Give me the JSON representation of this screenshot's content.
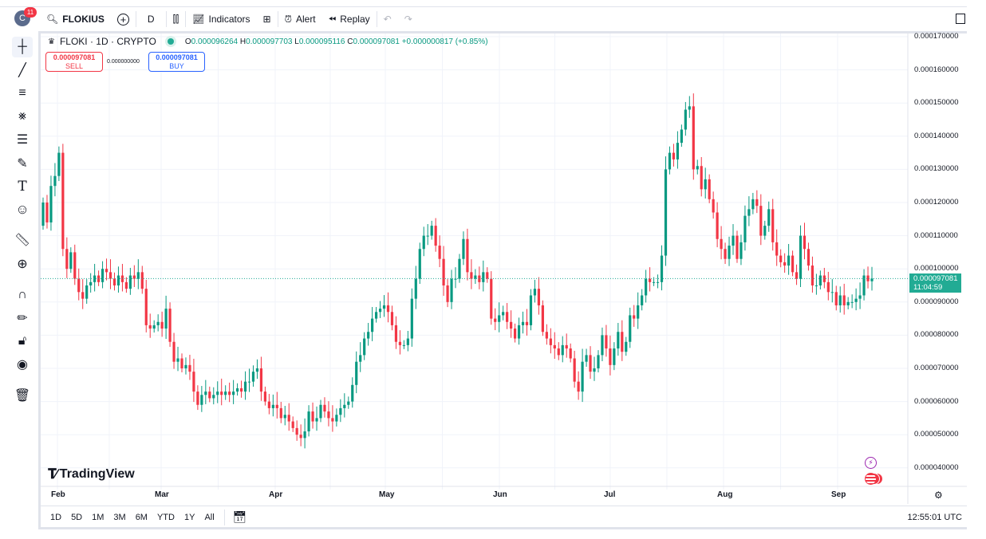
{
  "topbar": {
    "notification_count": "11",
    "avatar_letter": "C",
    "symbol": "FLOKIUS",
    "interval": "D",
    "indicators_label": "Indicators",
    "alert_label": "Alert",
    "replay_label": "Replay"
  },
  "legend": {
    "title": "FLOKI · 1D · CRYPTO",
    "o_label": "O",
    "o": "0.000096264",
    "h_label": "H",
    "h": "0.000097703",
    "l_label": "L",
    "l": "0.000095116",
    "c_label": "C",
    "c": "0.000097081",
    "change": "+0.000000817 (+0.85%)"
  },
  "trade": {
    "sell_price": "0.000097081",
    "sell_label": "SELL",
    "spread": "0.000000000",
    "buy_price": "0.000097081",
    "buy_label": "BUY"
  },
  "price_axis": {
    "labels": [
      "0.000170000",
      "0.000160000",
      "0.000150000",
      "0.000140000",
      "0.000130000",
      "0.000120000",
      "0.000110000",
      "0.000100000",
      "0.000090000",
      "0.000080000",
      "0.000070000",
      "0.000060000",
      "0.000050000",
      "0.000040000"
    ],
    "current_price": "0.000097081",
    "countdown": "11:04:59"
  },
  "time_axis": {
    "labels": [
      "Feb",
      "Mar",
      "Apr",
      "May",
      "Jun",
      "Jul",
      "Aug",
      "Sep"
    ]
  },
  "logo": "TradingView",
  "bottombar": {
    "ranges": [
      "1D",
      "5D",
      "1M",
      "3M",
      "6M",
      "YTD",
      "1Y",
      "All"
    ],
    "clock": "12:55:01 UTC"
  },
  "colors": {
    "up": "#089981",
    "down": "#f23645",
    "price_tag": "#22ab94"
  },
  "chart_data": {
    "type": "candlestick",
    "price_unit": "1e-6",
    "ylim": [
      40,
      170
    ],
    "first_open": 113,
    "closes": [
      120,
      114,
      125,
      128,
      135,
      106,
      100,
      105,
      97,
      93,
      91,
      95,
      96,
      98,
      96,
      100,
      99,
      97,
      95,
      98,
      96,
      94,
      98,
      97,
      99,
      94,
      83,
      82,
      83,
      84,
      82,
      88,
      78,
      72,
      73,
      70,
      71,
      69,
      63,
      59,
      62,
      63,
      61,
      62,
      63,
      62,
      63,
      62,
      63,
      64,
      63,
      66,
      66,
      69,
      70,
      63,
      60,
      58,
      59,
      58,
      55,
      56,
      54,
      52,
      50,
      49,
      51,
      57,
      54,
      55,
      59,
      57,
      55,
      54,
      56,
      58,
      59,
      60,
      65,
      72,
      74,
      79,
      81,
      85,
      87,
      88,
      89,
      87,
      83,
      78,
      77,
      77,
      79,
      91,
      97,
      106,
      110,
      110,
      113,
      107,
      103,
      95,
      90,
      97,
      97,
      103,
      109,
      99,
      97,
      98,
      96,
      99,
      97,
      85,
      84,
      86,
      87,
      84,
      82,
      79,
      83,
      84,
      83,
      92,
      94,
      89,
      81,
      79,
      77,
      76,
      74,
      77,
      76,
      73,
      66,
      63,
      72,
      74,
      69,
      70,
      74,
      80,
      76,
      71,
      76,
      81,
      75,
      78,
      86,
      85,
      89,
      92,
      97,
      96,
      96,
      96,
      104,
      130,
      135,
      133,
      138,
      142,
      148,
      149,
      130,
      131,
      124,
      127,
      121,
      117,
      109,
      106,
      103,
      107,
      110,
      103,
      108,
      116,
      118,
      121,
      119,
      110,
      113,
      118,
      108,
      104,
      102,
      101,
      104,
      99,
      97,
      110,
      106,
      101,
      95,
      95,
      98,
      96,
      93,
      93,
      89,
      92,
      89,
      90,
      90,
      91,
      92,
      98,
      96.26,
      97.08
    ]
  }
}
